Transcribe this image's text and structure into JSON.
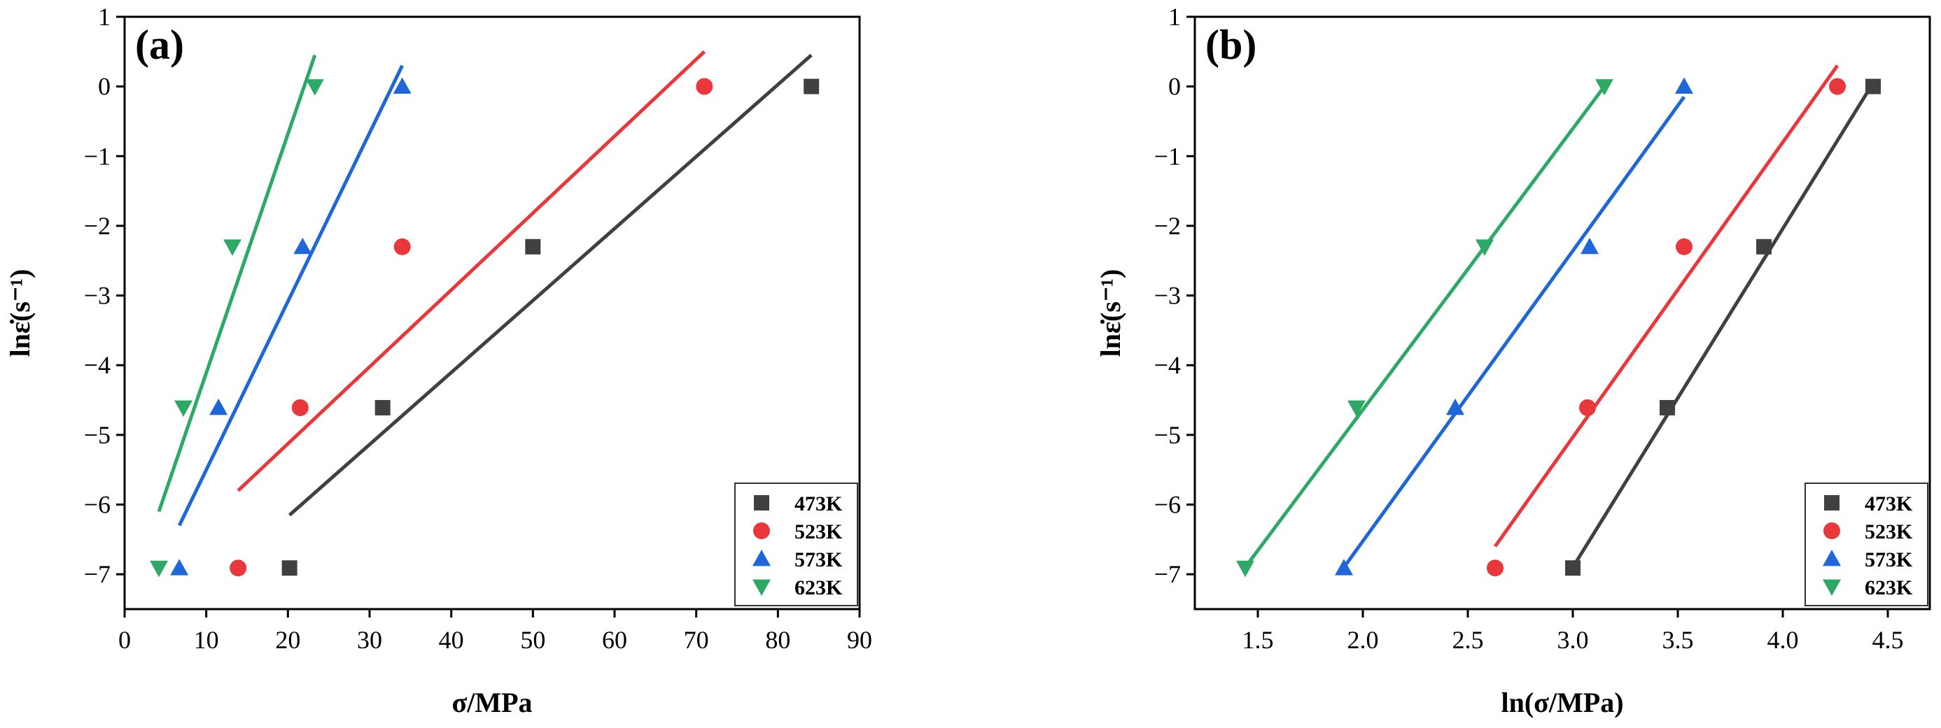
{
  "chart_data": [
    {
      "panel_label": "(a)",
      "type": "scatter",
      "xlabel": "σ/MPa",
      "ylabel": "lnε̇(s⁻¹)",
      "xlim": [
        0,
        90
      ],
      "ylim": [
        -7.5,
        1
      ],
      "xticks": [
        "0",
        "10",
        "20",
        "30",
        "40",
        "50",
        "60",
        "70",
        "80",
        "90"
      ],
      "yticks": [
        "1",
        "0",
        "−1",
        "−2",
        "−3",
        "−4",
        "−5",
        "−6",
        "−7"
      ],
      "legend_position": "bottom-right",
      "series": [
        {
          "name": "473K",
          "color": "#404040",
          "marker": "square",
          "points": [
            [
              20.2,
              -6.91
            ],
            [
              31.6,
              -4.61
            ],
            [
              50,
              -2.3
            ],
            [
              84.1,
              0
            ]
          ],
          "fit": [
            [
              20.2,
              -6.15
            ],
            [
              84.1,
              0.45
            ]
          ]
        },
        {
          "name": "523K",
          "color": "#e8383b",
          "marker": "circle",
          "points": [
            [
              13.9,
              -6.91
            ],
            [
              21.5,
              -4.61
            ],
            [
              34,
              -2.3
            ],
            [
              71,
              0
            ]
          ],
          "fit": [
            [
              13.9,
              -5.8
            ],
            [
              71,
              0.5
            ]
          ]
        },
        {
          "name": "573K",
          "color": "#1f67d8",
          "marker": "triangle-up",
          "points": [
            [
              6.7,
              -6.91
            ],
            [
              11.5,
              -4.61
            ],
            [
              21.8,
              -2.3
            ],
            [
              34,
              0
            ]
          ],
          "fit": [
            [
              6.7,
              -6.3
            ],
            [
              34,
              0.3
            ]
          ]
        },
        {
          "name": "623K",
          "color": "#2ea865",
          "marker": "triangle-down",
          "points": [
            [
              4.2,
              -6.91
            ],
            [
              7.2,
              -4.61
            ],
            [
              13.2,
              -2.3
            ],
            [
              23.3,
              0
            ]
          ],
          "fit": [
            [
              4.2,
              -6.1
            ],
            [
              23.3,
              0.45
            ]
          ]
        }
      ]
    },
    {
      "panel_label": "(b)",
      "type": "scatter",
      "xlabel": "ln(σ/MPa)",
      "ylabel": "lnε̇(s⁻¹)",
      "xlim": [
        1.2,
        4.7
      ],
      "ylim": [
        -7.5,
        1
      ],
      "xticks": [
        "1.5",
        "2.0",
        "2.5",
        "3.0",
        "3.5",
        "4.0",
        "4.5"
      ],
      "yticks": [
        "1",
        "0",
        "−1",
        "−2",
        "−3",
        "−4",
        "−5",
        "−6",
        "−7"
      ],
      "legend_position": "bottom-right",
      "series": [
        {
          "name": "473K",
          "color": "#404040",
          "marker": "square",
          "points": [
            [
              3.0,
              -6.91
            ],
            [
              3.45,
              -4.61
            ],
            [
              3.91,
              -2.3
            ],
            [
              4.43,
              0
            ]
          ],
          "fit": [
            [
              3.0,
              -6.9
            ],
            [
              4.43,
              0.05
            ]
          ]
        },
        {
          "name": "523K",
          "color": "#e8383b",
          "marker": "circle",
          "points": [
            [
              2.63,
              -6.91
            ],
            [
              3.07,
              -4.61
            ],
            [
              3.53,
              -2.3
            ],
            [
              4.26,
              0
            ]
          ],
          "fit": [
            [
              2.63,
              -6.6
            ],
            [
              4.26,
              0.3
            ]
          ]
        },
        {
          "name": "573K",
          "color": "#1f67d8",
          "marker": "triangle-up",
          "points": [
            [
              1.91,
              -6.91
            ],
            [
              2.44,
              -4.61
            ],
            [
              3.08,
              -2.3
            ],
            [
              3.53,
              0
            ]
          ],
          "fit": [
            [
              1.91,
              -6.9
            ],
            [
              3.53,
              -0.15
            ]
          ]
        },
        {
          "name": "623K",
          "color": "#2ea865",
          "marker": "triangle-down",
          "points": [
            [
              1.44,
              -6.91
            ],
            [
              1.97,
              -4.61
            ],
            [
              2.58,
              -2.3
            ],
            [
              3.15,
              0
            ]
          ],
          "fit": [
            [
              1.44,
              -6.9
            ],
            [
              3.15,
              0
            ]
          ]
        }
      ]
    }
  ]
}
